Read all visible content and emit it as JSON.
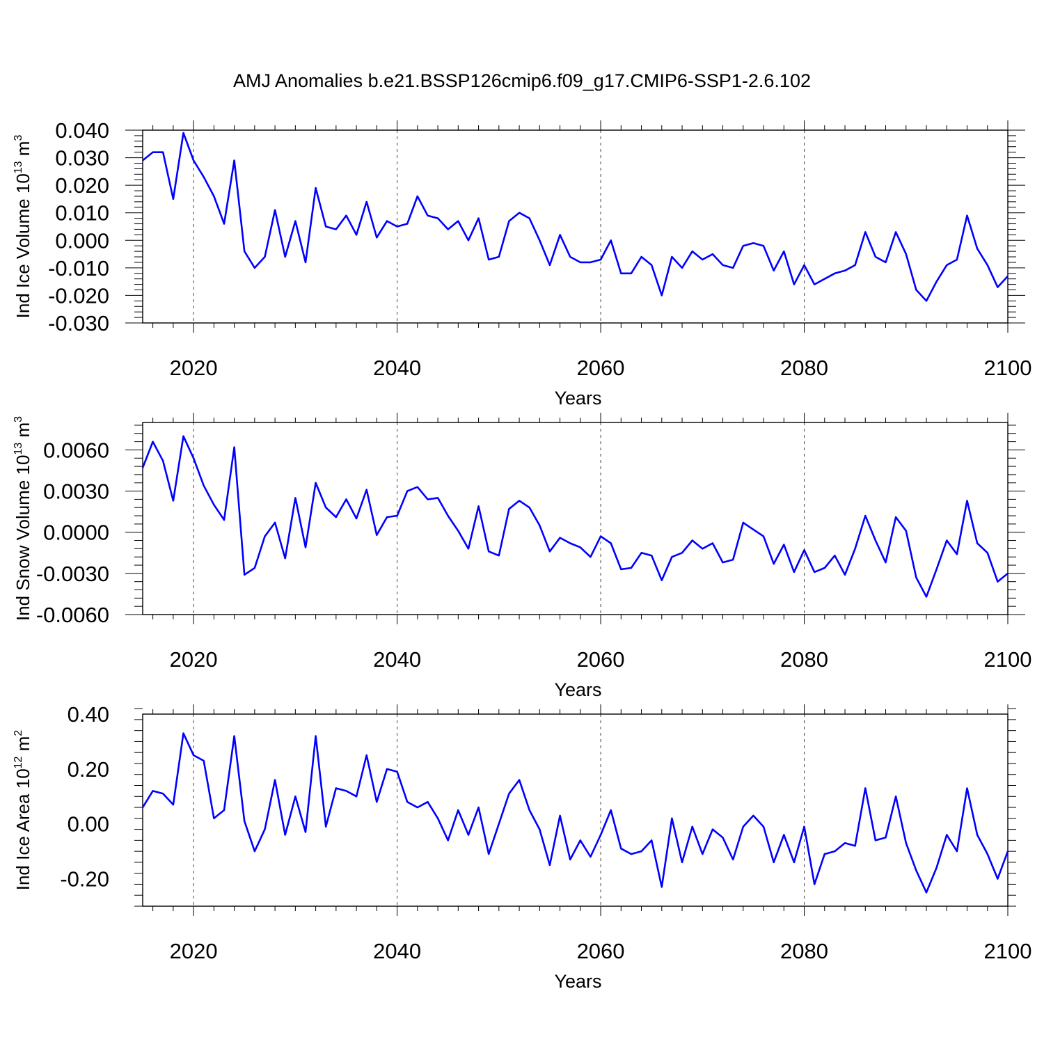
{
  "figure": {
    "title": "AMJ Anomalies b.e21.BSSP126cmip6.f09_g17.CMIP6-SSP1-2.6.102"
  },
  "chart_data": [
    {
      "type": "line",
      "title": "AMJ Anomalies b.e21.BSSP126cmip6.f09_g17.CMIP6-SSP1-2.6.102",
      "xlabel": "Years",
      "ylabel": {
        "text": "Ind Ice Volume 10",
        "sup": "13",
        "unit": " m",
        "unit_sup": "3"
      },
      "xlim": [
        2015,
        2100
      ],
      "ylim": [
        -0.03,
        0.04
      ],
      "xticks": [
        "2020",
        "2040",
        "2060",
        "2080",
        "2100"
      ],
      "xtick_values": [
        2020,
        2040,
        2060,
        2080,
        2100
      ],
      "yticks": [
        "0.040",
        "0.030",
        "0.020",
        "0.010",
        "0.000",
        "-0.010",
        "-0.020",
        "-0.030"
      ],
      "ytick_values": [
        0.04,
        0.03,
        0.02,
        0.01,
        0.0,
        -0.01,
        -0.02,
        -0.03
      ],
      "grid": "dashed vertical at major x ticks",
      "color": "#0000ff",
      "x": [
        2015,
        2016,
        2017,
        2018,
        2019,
        2020,
        2021,
        2022,
        2023,
        2024,
        2025,
        2026,
        2027,
        2028,
        2029,
        2030,
        2031,
        2032,
        2033,
        2034,
        2035,
        2036,
        2037,
        2038,
        2039,
        2040,
        2041,
        2042,
        2043,
        2044,
        2045,
        2046,
        2047,
        2048,
        2049,
        2050,
        2051,
        2052,
        2053,
        2054,
        2055,
        2056,
        2057,
        2058,
        2059,
        2060,
        2061,
        2062,
        2063,
        2064,
        2065,
        2066,
        2067,
        2068,
        2069,
        2070,
        2071,
        2072,
        2073,
        2074,
        2075,
        2076,
        2077,
        2078,
        2079,
        2080,
        2081,
        2082,
        2083,
        2084,
        2085,
        2086,
        2087,
        2088,
        2089,
        2090,
        2091,
        2092,
        2093,
        2094,
        2095,
        2096,
        2097,
        2098,
        2099,
        2100
      ],
      "y": [
        0.029,
        0.032,
        0.032,
        0.015,
        0.039,
        0.029,
        0.023,
        0.016,
        0.006,
        0.029,
        -0.004,
        -0.01,
        -0.006,
        0.011,
        -0.006,
        0.007,
        -0.008,
        0.019,
        0.005,
        0.004,
        0.009,
        0.002,
        0.014,
        0.001,
        0.007,
        0.005,
        0.006,
        0.016,
        0.009,
        0.008,
        0.004,
        0.007,
        0.0,
        0.008,
        -0.007,
        -0.006,
        0.007,
        0.01,
        0.008,
        0.0,
        -0.009,
        0.002,
        -0.006,
        -0.008,
        -0.008,
        -0.007,
        0.0,
        -0.012,
        -0.012,
        -0.006,
        -0.009,
        -0.02,
        -0.006,
        -0.01,
        -0.004,
        -0.007,
        -0.005,
        -0.009,
        -0.01,
        -0.002,
        -0.001,
        -0.002,
        -0.011,
        -0.004,
        -0.016,
        -0.009,
        -0.016,
        -0.014,
        -0.012,
        -0.011,
        -0.009,
        0.003,
        -0.006,
        -0.008,
        0.003,
        -0.005,
        -0.018,
        -0.022,
        -0.015,
        -0.009,
        -0.007,
        0.009,
        -0.003,
        -0.009,
        -0.017,
        -0.013
      ]
    },
    {
      "type": "line",
      "xlabel": "Years",
      "ylabel": {
        "text": "Ind Snow Volume 10",
        "sup": "13",
        "unit": " m",
        "unit_sup": "3"
      },
      "xlim": [
        2015,
        2100
      ],
      "ylim": [
        -0.006,
        0.008
      ],
      "xticks": [
        "2020",
        "2040",
        "2060",
        "2080",
        "2100"
      ],
      "xtick_values": [
        2020,
        2040,
        2060,
        2080,
        2100
      ],
      "yticks": [
        "0.0060",
        "0.0030",
        "0.0000",
        "-0.0030",
        "-0.0060"
      ],
      "ytick_values": [
        0.006,
        0.003,
        0.0,
        -0.003,
        -0.006
      ],
      "grid": "dashed vertical at major x ticks",
      "color": "#0000ff",
      "x": [
        2015,
        2016,
        2017,
        2018,
        2019,
        2020,
        2021,
        2022,
        2023,
        2024,
        2025,
        2026,
        2027,
        2028,
        2029,
        2030,
        2031,
        2032,
        2033,
        2034,
        2035,
        2036,
        2037,
        2038,
        2039,
        2040,
        2041,
        2042,
        2043,
        2044,
        2045,
        2046,
        2047,
        2048,
        2049,
        2050,
        2051,
        2052,
        2053,
        2054,
        2055,
        2056,
        2057,
        2058,
        2059,
        2060,
        2061,
        2062,
        2063,
        2064,
        2065,
        2066,
        2067,
        2068,
        2069,
        2070,
        2071,
        2072,
        2073,
        2074,
        2075,
        2076,
        2077,
        2078,
        2079,
        2080,
        2081,
        2082,
        2083,
        2084,
        2085,
        2086,
        2087,
        2088,
        2089,
        2090,
        2091,
        2092,
        2093,
        2094,
        2095,
        2096,
        2097,
        2098,
        2099,
        2100
      ],
      "y": [
        0.0047,
        0.0066,
        0.0052,
        0.0023,
        0.007,
        0.0054,
        0.0034,
        0.002,
        0.0009,
        0.0062,
        -0.0031,
        -0.0026,
        -0.0003,
        0.0007,
        -0.0019,
        0.0025,
        -0.0011,
        0.0036,
        0.0018,
        0.0011,
        0.0024,
        0.001,
        0.0031,
        -0.0002,
        0.0011,
        0.0012,
        0.003,
        0.0033,
        0.0024,
        0.0025,
        0.0012,
        0.0001,
        -0.0012,
        0.0019,
        -0.0014,
        -0.0017,
        0.0017,
        0.0023,
        0.0018,
        0.0005,
        -0.0014,
        -0.0004,
        -0.0008,
        -0.0011,
        -0.0018,
        -0.0003,
        -0.0008,
        -0.0027,
        -0.0026,
        -0.0015,
        -0.0017,
        -0.0035,
        -0.0018,
        -0.0015,
        -0.0006,
        -0.0012,
        -0.0008,
        -0.0022,
        -0.002,
        0.0007,
        0.0002,
        -0.0003,
        -0.0023,
        -0.0009,
        -0.0029,
        -0.0013,
        -0.0029,
        -0.0026,
        -0.0017,
        -0.0031,
        -0.0012,
        0.0012,
        -0.0006,
        -0.0022,
        0.0011,
        0.0001,
        -0.0033,
        -0.0047,
        -0.0027,
        -0.0006,
        -0.0016,
        0.0023,
        -0.0008,
        -0.0015,
        -0.0036,
        -0.003
      ]
    },
    {
      "type": "line",
      "xlabel": "Years",
      "ylabel": {
        "text": "Ind Ice Area 10",
        "sup": "12",
        "unit": " m",
        "unit_sup": "2"
      },
      "xlim": [
        2015,
        2100
      ],
      "ylim": [
        -0.3,
        0.4
      ],
      "xticks": [
        "2020",
        "2040",
        "2060",
        "2080",
        "2100"
      ],
      "xtick_values": [
        2020,
        2040,
        2060,
        2080,
        2100
      ],
      "yticks": [
        "0.40",
        "0.20",
        "0.00",
        "-0.20"
      ],
      "ytick_values": [
        0.4,
        0.2,
        0.0,
        -0.2
      ],
      "grid": "dashed vertical at major x ticks",
      "color": "#0000ff",
      "x": [
        2015,
        2016,
        2017,
        2018,
        2019,
        2020,
        2021,
        2022,
        2023,
        2024,
        2025,
        2026,
        2027,
        2028,
        2029,
        2030,
        2031,
        2032,
        2033,
        2034,
        2035,
        2036,
        2037,
        2038,
        2039,
        2040,
        2041,
        2042,
        2043,
        2044,
        2045,
        2046,
        2047,
        2048,
        2049,
        2050,
        2051,
        2052,
        2053,
        2054,
        2055,
        2056,
        2057,
        2058,
        2059,
        2060,
        2061,
        2062,
        2063,
        2064,
        2065,
        2066,
        2067,
        2068,
        2069,
        2070,
        2071,
        2072,
        2073,
        2074,
        2075,
        2076,
        2077,
        2078,
        2079,
        2080,
        2081,
        2082,
        2083,
        2084,
        2085,
        2086,
        2087,
        2088,
        2089,
        2090,
        2091,
        2092,
        2093,
        2094,
        2095,
        2096,
        2097,
        2098,
        2099,
        2100
      ],
      "y": [
        0.06,
        0.12,
        0.11,
        0.07,
        0.33,
        0.25,
        0.23,
        0.02,
        0.05,
        0.32,
        0.01,
        -0.1,
        -0.02,
        0.16,
        -0.04,
        0.1,
        -0.03,
        0.32,
        -0.01,
        0.13,
        0.12,
        0.1,
        0.25,
        0.08,
        0.2,
        0.19,
        0.08,
        0.06,
        0.08,
        0.02,
        -0.06,
        0.05,
        -0.04,
        0.06,
        -0.11,
        0.0,
        0.11,
        0.16,
        0.05,
        -0.02,
        -0.15,
        0.03,
        -0.13,
        -0.06,
        -0.12,
        -0.04,
        0.05,
        -0.09,
        -0.11,
        -0.1,
        -0.06,
        -0.23,
        0.02,
        -0.14,
        -0.01,
        -0.11,
        -0.02,
        -0.05,
        -0.13,
        -0.01,
        0.03,
        -0.01,
        -0.14,
        -0.04,
        -0.14,
        -0.01,
        -0.22,
        -0.11,
        -0.1,
        -0.07,
        -0.08,
        0.13,
        -0.06,
        -0.05,
        0.1,
        -0.07,
        -0.17,
        -0.25,
        -0.16,
        -0.04,
        -0.1,
        0.13,
        -0.04,
        -0.11,
        -0.2,
        -0.1
      ]
    }
  ]
}
